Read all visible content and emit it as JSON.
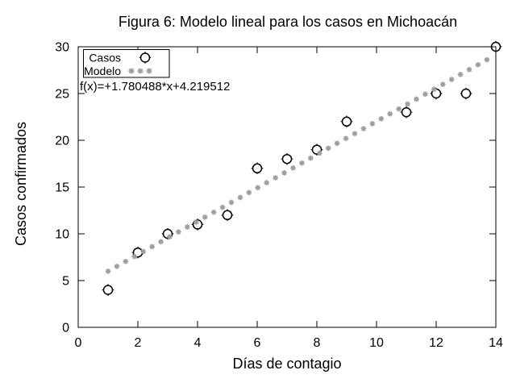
{
  "chart_data": {
    "type": "scatter",
    "title": "Figura 6: Modelo lineal para los casos en Michoacán",
    "xlabel": "Días de contagio",
    "ylabel": "Casos confirmados",
    "xlim": [
      0,
      14
    ],
    "ylim": [
      0,
      30
    ],
    "x_ticks": [
      0,
      2,
      4,
      6,
      8,
      10,
      12,
      14
    ],
    "y_ticks": [
      0,
      5,
      10,
      15,
      20,
      25,
      30
    ],
    "grid": false,
    "legend_position": "top-left",
    "annotation": "f(x)=+1.780488*x+4.219512",
    "series": [
      {
        "name": "Casos",
        "type": "scatter",
        "marker": "open-circle",
        "color": "#000000",
        "x": [
          1,
          2,
          3,
          4,
          5,
          6,
          7,
          8,
          9,
          11,
          12,
          13,
          14
        ],
        "y": [
          4,
          8,
          10,
          11,
          12,
          17,
          18,
          19,
          22,
          23,
          25,
          25,
          30
        ]
      },
      {
        "name": "Modelo",
        "type": "sampled-function",
        "marker": "asterisk",
        "color": "#9e9e9e",
        "slope": 1.780488,
        "intercept": 4.219512,
        "x_start": 1.0,
        "x_end": 13.7,
        "samples": 44
      }
    ],
    "colors": {
      "frame": "#000000",
      "casos": "#000000",
      "modelo": "#9e9e9e",
      "background": "#ffffff"
    }
  }
}
